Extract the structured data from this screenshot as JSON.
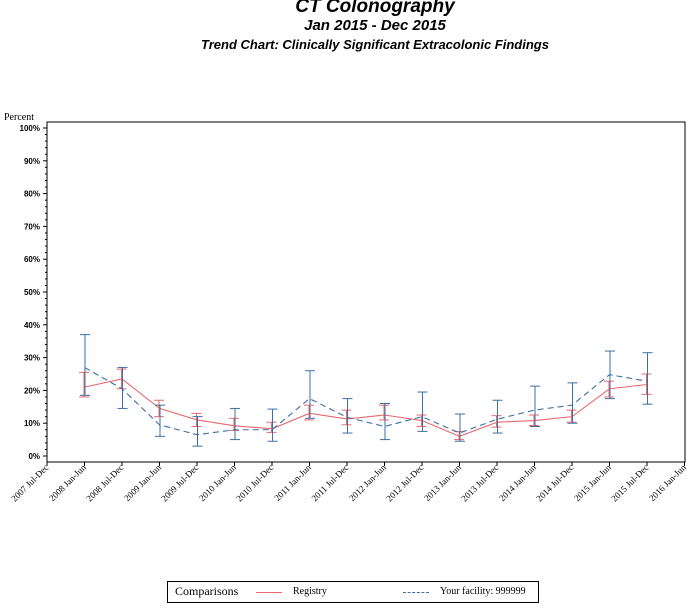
{
  "chart_data": {
    "type": "line",
    "title": "CT Colonography",
    "subtitle": "Jan 2015 - Dec 2015",
    "subtitle2": "Trend Chart: Clinically Significant Extracolonic Findings",
    "ylabel": "Percent",
    "ylim": [
      0,
      100
    ],
    "yticks": [
      "0%",
      "10%",
      "20%",
      "30%",
      "40%",
      "50%",
      "60%",
      "70%",
      "80%",
      "90%",
      "100%"
    ],
    "x": [
      "2007 Jul-Dec",
      "2008 Jan-Jun",
      "2008 Jul-Dec",
      "2009 Jan-Jun",
      "2009 Jul-Dec",
      "2010 Jan-Jun",
      "2010 Jul-Dec",
      "2011 Jan-Jun",
      "2011 Jul-Dec",
      "2012 Jan-Jun",
      "2012 Jul-Dec",
      "2013 Jan-Jun",
      "2013 Jul-Dec",
      "2014 Jan-Jun",
      "2014 Jul-Dec",
      "2015 Jan-Jun",
      "2015 Jul-Dec",
      "2016 Jan-Jun"
    ],
    "series": [
      {
        "name": "Registry",
        "color": "#e8696e",
        "style": "solid",
        "values": [
          null,
          21,
          23.5,
          14.5,
          11,
          9.2,
          8.3,
          13,
          11.3,
          12.5,
          10.8,
          6,
          10.3,
          10.8,
          12,
          20.5,
          21.8,
          null
        ],
        "lower": [
          null,
          18,
          20.5,
          12,
          9,
          7.8,
          7.2,
          11,
          9.5,
          11,
          9,
          5,
          8.8,
          9.3,
          10.3,
          18,
          18.8,
          null
        ],
        "upper": [
          null,
          25.5,
          26.5,
          17,
          13,
          11.5,
          10.3,
          15.5,
          14,
          15.5,
          12.5,
          7.5,
          12.3,
          12.5,
          14,
          22.8,
          25,
          null
        ]
      },
      {
        "name": "Your facility: 999999",
        "color": "#3a6fa5",
        "style": "dashed",
        "values": [
          null,
          27,
          20.5,
          9.5,
          6.5,
          8,
          8,
          17.5,
          11.8,
          9,
          12,
          7,
          11.2,
          14,
          15.5,
          24.8,
          22.8,
          null
        ],
        "lower": [
          null,
          18.5,
          14.5,
          6,
          3,
          5,
          4.5,
          11.5,
          7,
          5,
          7.5,
          4.5,
          7,
          9,
          10,
          17.5,
          15.8,
          null
        ],
        "upper": [
          null,
          37,
          27,
          15.5,
          12,
          14.5,
          14.3,
          26,
          17.5,
          16,
          19.5,
          12.8,
          17,
          21.3,
          22.3,
          32,
          31.5,
          null
        ]
      }
    ],
    "grid": false,
    "legend_position": "bottom"
  },
  "legend": {
    "title": "Comparisons",
    "items": [
      "Registry",
      "Your facility: 999999"
    ]
  }
}
